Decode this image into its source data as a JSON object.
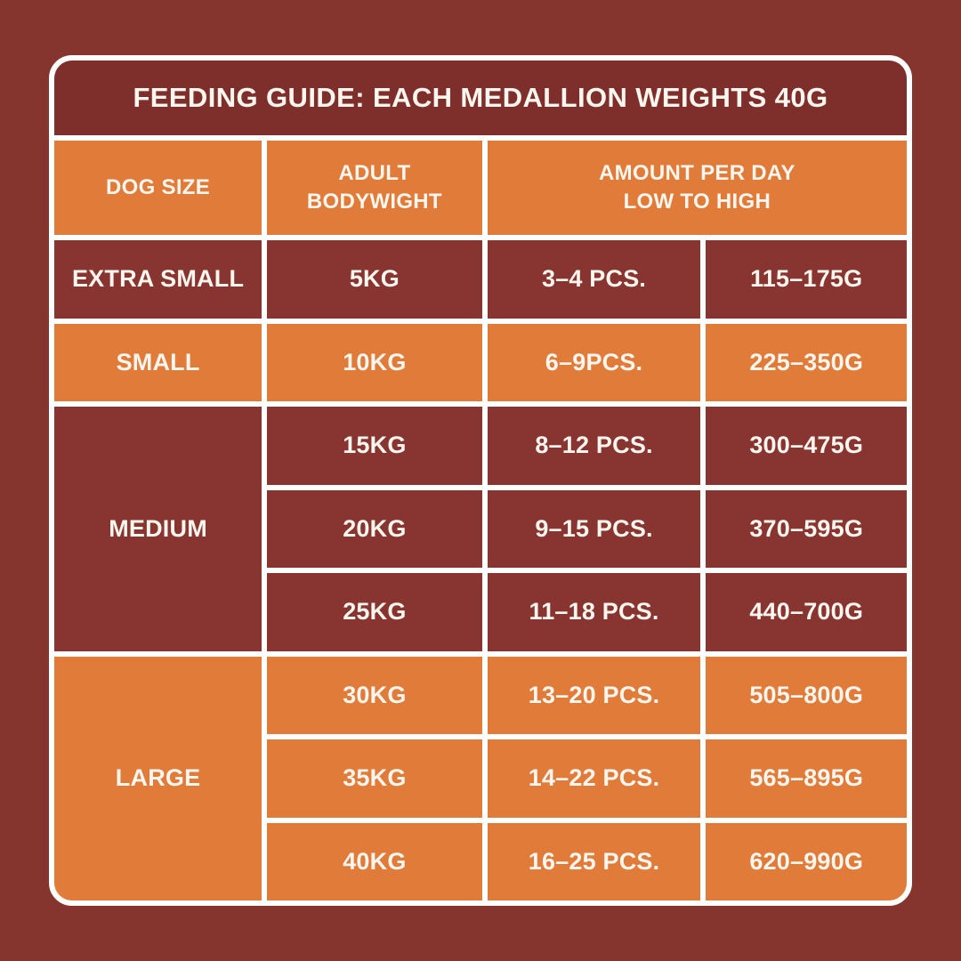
{
  "colors": {
    "background": "#86352E",
    "title_bar": "#7E2F2B",
    "dark_cell": "#883430",
    "orange_cell": "#E07B3A",
    "grid_line": "#FFFFFF",
    "text": "#FCF6EE"
  },
  "table": {
    "title": "FEEDING GUIDE: EACH MEDALLION WEIGHTS 40G",
    "columns": {
      "dog_size": "DOG SIZE",
      "adult_line1": "ADULT",
      "adult_line2": "BODYWIGHT",
      "amount_line1": "AMOUNT PER DAY",
      "amount_line2": "LOW TO HIGH"
    },
    "groups": [
      {
        "size": "EXTRA SMALL",
        "tone": "dark",
        "rows": [
          {
            "weight": "5KG",
            "pcs": "3–4 PCS.",
            "grams": "115–175G"
          }
        ]
      },
      {
        "size": "SMALL",
        "tone": "orange",
        "rows": [
          {
            "weight": "10KG",
            "pcs": "6–9PCS.",
            "grams": "225–350G"
          }
        ]
      },
      {
        "size": "MEDIUM",
        "tone": "dark",
        "rows": [
          {
            "weight": "15KG",
            "pcs": "8–12 PCS.",
            "grams": "300–475G"
          },
          {
            "weight": "20KG",
            "pcs": "9–15 PCS.",
            "grams": "370–595G"
          },
          {
            "weight": "25KG",
            "pcs": "11–18 PCS.",
            "grams": "440–700G"
          }
        ]
      },
      {
        "size": "LARGE",
        "tone": "orange",
        "rows": [
          {
            "weight": "30KG",
            "pcs": "13–20 PCS.",
            "grams": "505–800G"
          },
          {
            "weight": "35KG",
            "pcs": "14–22 PCS.",
            "grams": "565–895G"
          },
          {
            "weight": "40KG",
            "pcs": "16–25 PCS.",
            "grams": "620–990G"
          }
        ]
      }
    ]
  },
  "chart_data": {
    "type": "table",
    "title": "FEEDING GUIDE: EACH MEDALLION WEIGHTS 40G",
    "columns": [
      "DOG SIZE",
      "ADULT BODYWIGHT",
      "AMOUNT PER DAY LOW TO HIGH (PCS.)",
      "AMOUNT PER DAY LOW TO HIGH (G)"
    ],
    "rows": [
      [
        "EXTRA SMALL",
        "5KG",
        "3–4 PCS.",
        "115–175G"
      ],
      [
        "SMALL",
        "10KG",
        "6–9PCS.",
        "225–350G"
      ],
      [
        "MEDIUM",
        "15KG",
        "8–12 PCS.",
        "300–475G"
      ],
      [
        "MEDIUM",
        "20KG",
        "9–15 PCS.",
        "370–595G"
      ],
      [
        "MEDIUM",
        "25KG",
        "11–18 PCS.",
        "440–700G"
      ],
      [
        "LARGE",
        "30KG",
        "13–20 PCS.",
        "505–800G"
      ],
      [
        "LARGE",
        "35KG",
        "14–22 PCS.",
        "565–895G"
      ],
      [
        "LARGE",
        "40KG",
        "16–25 PCS.",
        "620–990G"
      ]
    ],
    "layout_hints": {
      "header_note": "AMOUNT PER DAY LOW TO HIGH spans the last two columns",
      "row_group_spans": {
        "MEDIUM": 3,
        "LARGE": 3
      },
      "alternating_tones": [
        "dark",
        "orange"
      ]
    }
  }
}
